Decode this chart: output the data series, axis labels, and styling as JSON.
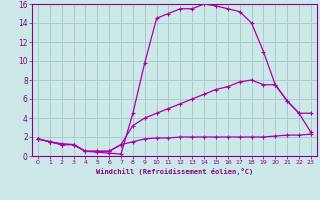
{
  "bg_color": "#cce8e8",
  "grid_color": "#aacccc",
  "line_color": "#aa00aa",
  "xlabel": "Windchill (Refroidissement éolien,°C)",
  "xlabel_color": "#880088",
  "tick_color": "#880088",
  "xlim": [
    -0.5,
    23.5
  ],
  "ylim": [
    0,
    16
  ],
  "xticks": [
    0,
    1,
    2,
    3,
    4,
    5,
    6,
    7,
    8,
    9,
    10,
    11,
    12,
    13,
    14,
    15,
    16,
    17,
    18,
    19,
    20,
    21,
    22,
    23
  ],
  "yticks": [
    0,
    2,
    4,
    6,
    8,
    10,
    12,
    14,
    16
  ],
  "line1_x": [
    0,
    1,
    2,
    3,
    4,
    5,
    6,
    7,
    8,
    9,
    10,
    11,
    12,
    13,
    14,
    15,
    16,
    17,
    18,
    19,
    20,
    21,
    22,
    23
  ],
  "line1_y": [
    1.8,
    1.5,
    1.3,
    1.2,
    0.5,
    0.4,
    0.3,
    0.2,
    4.5,
    9.8,
    14.5,
    15.0,
    15.5,
    15.5,
    16.0,
    15.8,
    15.5,
    15.2,
    14.0,
    11.0,
    7.5,
    5.8,
    4.5,
    2.5
  ],
  "line2_x": [
    0,
    1,
    2,
    3,
    4,
    5,
    6,
    7,
    8,
    9,
    10,
    11,
    12,
    13,
    14,
    15,
    16,
    17,
    18,
    19,
    20,
    21,
    22,
    23
  ],
  "line2_y": [
    1.8,
    1.5,
    1.2,
    1.2,
    0.5,
    0.5,
    0.5,
    1.2,
    3.2,
    4.0,
    4.5,
    5.0,
    5.5,
    6.0,
    6.5,
    7.0,
    7.3,
    7.8,
    8.0,
    7.5,
    7.5,
    5.8,
    4.5,
    4.5
  ],
  "line3_x": [
    0,
    1,
    2,
    3,
    4,
    5,
    6,
    7,
    8,
    9,
    10,
    11,
    12,
    13,
    14,
    15,
    16,
    17,
    18,
    19,
    20,
    21,
    22,
    23
  ],
  "line3_y": [
    1.8,
    1.5,
    1.2,
    1.2,
    0.5,
    0.5,
    0.5,
    1.2,
    1.5,
    1.8,
    1.9,
    1.9,
    2.0,
    2.0,
    2.0,
    2.0,
    2.0,
    2.0,
    2.0,
    2.0,
    2.1,
    2.2,
    2.2,
    2.3
  ]
}
